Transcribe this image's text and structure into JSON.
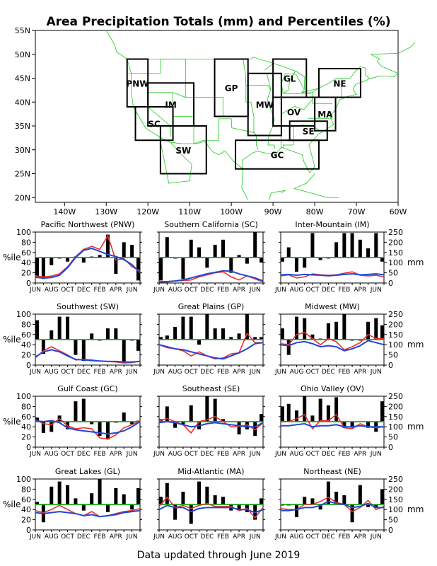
{
  "title": "Area Precipitation Totals (mm) and Percentiles (%)",
  "footer": "Data updated through June 2019",
  "colors": {
    "bar": "#000000",
    "ref": "#19a819",
    "red": "#e8312e",
    "blue": "#2345d8",
    "map_lines": "#1ec81e",
    "region_box": "#000000",
    "region_label": "#2d62e0"
  },
  "map": {
    "lat_labels": [
      "55N",
      "50N",
      "45N",
      "40N",
      "35N",
      "30N",
      "25N",
      "20N"
    ],
    "lon_labels": [
      "140W",
      "130W",
      "120W",
      "110W",
      "100W",
      "90W",
      "80W",
      "70W",
      "60W"
    ],
    "regions": [
      {
        "code": "PNW",
        "lon": [
          -125,
          -120
        ],
        "lat": [
          39,
          49
        ]
      },
      {
        "code": "SC",
        "lon": [
          -123,
          -114
        ],
        "lat": [
          32,
          39
        ]
      },
      {
        "code": "IM",
        "lon": [
          -120,
          -109
        ],
        "lat": [
          35,
          44
        ]
      },
      {
        "code": "SW",
        "lon": [
          -117,
          -106
        ],
        "lat": [
          25,
          35
        ]
      },
      {
        "code": "GP",
        "lon": [
          -104,
          -96
        ],
        "lat": [
          37,
          49
        ]
      },
      {
        "code": "MW",
        "lon": [
          -96,
          -88
        ],
        "lat": [
          33,
          46
        ]
      },
      {
        "code": "GL",
        "lon": [
          -90,
          -82
        ],
        "lat": [
          41,
          49
        ]
      },
      {
        "code": "NE",
        "lon": [
          -79,
          -69
        ],
        "lat": [
          41,
          47
        ]
      },
      {
        "code": "OV",
        "lon": [
          -90,
          -80
        ],
        "lat": [
          35,
          41
        ]
      },
      {
        "code": "MA",
        "lon": [
          -80,
          -75
        ],
        "lat": [
          34,
          41
        ]
      },
      {
        "code": "SE",
        "lon": [
          -86,
          -77
        ],
        "lat": [
          32,
          36
        ]
      },
      {
        "code": "GC",
        "lon": [
          -99,
          -79
        ],
        "lat": [
          26,
          32
        ]
      }
    ]
  },
  "chart_common": {
    "months": [
      "JUN",
      "AUG",
      "OCT",
      "DEC",
      "FEB",
      "APR",
      "JUN"
    ],
    "percentile_label": "%ile",
    "percentile_ticks": [
      "0",
      "20",
      "40",
      "60",
      "80",
      "100"
    ],
    "mm_label": "mm",
    "mm_ticks": [
      "0",
      "50",
      "100",
      "150",
      "200",
      "250"
    ]
  },
  "chart_data": [
    {
      "type": "bar",
      "title": "Pacific Northwest (PNW)",
      "ylabel": "%ile",
      "ylim": [
        0,
        100
      ],
      "y2lim": [
        0,
        250
      ],
      "y2label": "",
      "series": [
        {
          "name": "",
          "values": [
            12,
            8,
            35,
            48,
            42,
            52,
            40,
            52,
            55,
            95,
            18,
            80,
            75,
            5
          ]
        },
        {
          "name": "",
          "values": [
            35,
            30,
            34,
            45,
            80,
            130,
            165,
            180,
            165,
            232,
            112,
            120,
            80,
            60
          ]
        },
        {
          "name": "",
          "values": [
            28,
            24,
            27,
            38,
            75,
            125,
            160,
            170,
            155,
            140,
            130,
            115,
            90,
            50
          ]
        }
      ]
    },
    {
      "type": "bar",
      "title": "Southern California (SC)",
      "ylabel": "",
      "ylim": [
        0,
        100
      ],
      "y2lim": [
        0,
        250
      ],
      "y2label": "",
      "series": [
        {
          "name": "",
          "values": [
            5,
            90,
            48,
            8,
            85,
            70,
            30,
            75,
            85,
            20,
            55,
            38,
            100,
            40
          ]
        },
        {
          "name": "",
          "values": [
            5,
            5,
            10,
            12,
            15,
            30,
            40,
            50,
            55,
            30,
            15,
            35,
            20,
            5
          ]
        },
        {
          "name": "",
          "values": [
            6,
            7,
            10,
            15,
            25,
            35,
            45,
            52,
            60,
            58,
            45,
            35,
            25,
            10
          ]
        }
      ]
    },
    {
      "type": "bar",
      "title": "Inter-Mountain (IM)",
      "ylabel": "",
      "ylim": [
        0,
        100
      ],
      "y2lim": [
        0,
        250
      ],
      "y2label": "",
      "series": [
        {
          "name": "",
          "values": [
            42,
            70,
            22,
            30,
            98,
            45,
            48,
            80,
            98,
            98,
            85,
            68,
            98,
            42
          ]
        },
        {
          "name": "",
          "values": [
            35,
            40,
            25,
            30,
            45,
            40,
            38,
            40,
            48,
            55,
            38,
            35,
            38,
            30
          ]
        },
        {
          "name": "",
          "values": [
            40,
            42,
            38,
            42,
            40,
            38,
            35,
            38,
            42,
            45,
            40,
            42,
            45,
            40
          ]
        }
      ]
    },
    {
      "type": "bar",
      "title": "Southwest (SW)",
      "ylabel": "%ile",
      "ylim": [
        0,
        100
      ],
      "y2lim": [
        0,
        250
      ],
      "y2label": "",
      "series": [
        {
          "name": "",
          "values": [
            88,
            22,
            68,
            95,
            95,
            20,
            8,
            62,
            48,
            72,
            72,
            5,
            48,
            28
          ]
        },
        {
          "name": "",
          "values": [
            35,
            70,
            90,
            70,
            50,
            25,
            28,
            25,
            20,
            18,
            15,
            10,
            12,
            20
          ]
        },
        {
          "name": "",
          "values": [
            40,
            65,
            75,
            65,
            45,
            28,
            25,
            22,
            20,
            18,
            18,
            15,
            15,
            18
          ]
        }
      ]
    },
    {
      "type": "bar",
      "title": "Great Plains (GP)",
      "ylabel": "",
      "ylim": [
        0,
        100
      ],
      "y2lim": [
        0,
        250
      ],
      "y2label": "",
      "series": [
        {
          "name": "",
          "values": [
            55,
            58,
            75,
            95,
            95,
            40,
            100,
            72,
            72,
            55,
            62,
            100,
            55,
            55
          ]
        },
        {
          "name": "",
          "values": [
            100,
            85,
            80,
            70,
            45,
            65,
            45,
            30,
            35,
            55,
            60,
            155,
            110,
            110
          ]
        },
        {
          "name": "",
          "values": [
            100,
            90,
            80,
            75,
            65,
            55,
            45,
            35,
            30,
            45,
            60,
            80,
            105,
            110
          ]
        }
      ]
    },
    {
      "type": "bar",
      "title": "Midwest (MW)",
      "ylabel": "",
      "ylim": [
        0,
        100
      ],
      "y2lim": [
        0,
        250
      ],
      "y2label": "",
      "series": [
        {
          "name": "",
          "values": [
            72,
            20,
            95,
            92,
            60,
            52,
            82,
            85,
            100,
            48,
            48,
            85,
            92,
            78
          ]
        },
        {
          "name": "",
          "values": [
            105,
            100,
            150,
            160,
            130,
            100,
            130,
            115,
            75,
            90,
            110,
            150,
            130,
            130
          ]
        },
        {
          "name": "",
          "values": [
            100,
            95,
            110,
            115,
            105,
            90,
            95,
            90,
            70,
            80,
            95,
            120,
            110,
            100
          ]
        }
      ]
    },
    {
      "type": "bar",
      "title": "Gulf Coast (GC)",
      "ylabel": "%ile",
      "ylim": [
        0,
        100
      ],
      "y2lim": [
        0,
        250
      ],
      "y2label": "",
      "series": [
        {
          "name": "",
          "values": [
            58,
            28,
            30,
            62,
            35,
            90,
            95,
            45,
            22,
            15,
            48,
            68,
            45,
            52
          ]
        },
        {
          "name": "",
          "values": [
            135,
            115,
            110,
            140,
            105,
            90,
            95,
            90,
            45,
            40,
            60,
            95,
            110,
            130
          ]
        },
        {
          "name": "",
          "values": [
            130,
            125,
            130,
            120,
            95,
            85,
            80,
            75,
            70,
            65,
            70,
            80,
            100,
            125
          ]
        }
      ]
    },
    {
      "type": "bar",
      "title": "Southeast (SE)",
      "ylabel": "",
      "ylim": [
        0,
        100
      ],
      "y2lim": [
        0,
        250
      ],
      "y2label": "",
      "series": [
        {
          "name": "",
          "values": [
            55,
            80,
            38,
            45,
            82,
            35,
            100,
            95,
            55,
            50,
            25,
            35,
            22,
            65
          ]
        },
        {
          "name": "",
          "values": [
            130,
            140,
            125,
            110,
            70,
            125,
            135,
            150,
            125,
            100,
            100,
            110,
            85,
            120
          ]
        },
        {
          "name": "",
          "values": [
            120,
            125,
            120,
            110,
            100,
            105,
            115,
            120,
            115,
            110,
            105,
            100,
            100,
            120
          ]
        }
      ]
    },
    {
      "type": "bar",
      "title": "Ohio Valley (OV)",
      "ylabel": "",
      "ylim": [
        0,
        100
      ],
      "y2lim": [
        0,
        250
      ],
      "y2label": "",
      "series": [
        {
          "name": "",
          "values": [
            80,
            85,
            72,
            100,
            62,
            95,
            82,
            98,
            38,
            38,
            50,
            38,
            30,
            90
          ]
        },
        {
          "name": "",
          "values": [
            125,
            125,
            140,
            160,
            90,
            130,
            130,
            160,
            95,
            90,
            115,
            100,
            95,
            100
          ]
        },
        {
          "name": "",
          "values": [
            105,
            105,
            110,
            115,
            100,
            105,
            105,
            110,
            100,
            100,
            105,
            100,
            100,
            100
          ]
        }
      ]
    },
    {
      "type": "bar",
      "title": "Great Lakes (GL)",
      "ylabel": "%ile",
      "ylim": [
        0,
        100
      ],
      "y2lim": [
        0,
        250
      ],
      "y2label": "",
      "series": [
        {
          "name": "",
          "values": [
            55,
            15,
            85,
            95,
            88,
            62,
            38,
            72,
            100,
            35,
            82,
            70,
            40,
            82
          ]
        },
        {
          "name": "",
          "values": [
            95,
            85,
            100,
            120,
            100,
            80,
            70,
            90,
            65,
            70,
            80,
            90,
            95,
            105
          ]
        },
        {
          "name": "",
          "values": [
            85,
            80,
            85,
            90,
            85,
            80,
            70,
            75,
            65,
            70,
            75,
            85,
            90,
            95
          ]
        }
      ]
    },
    {
      "type": "bar",
      "title": "Mid-Atlantic (MA)",
      "ylabel": "",
      "ylim": [
        0,
        100
      ],
      "y2lim": [
        0,
        250
      ],
      "y2label": "",
      "series": [
        {
          "name": "",
          "values": [
            65,
            92,
            20,
            75,
            12,
            95,
            85,
            68,
            65,
            38,
            40,
            35,
            20,
            62
          ]
        },
        {
          "name": "",
          "values": [
            115,
            160,
            110,
            120,
            105,
            120,
            130,
            115,
            115,
            115,
            95,
            105,
            60,
            110
          ]
        },
        {
          "name": "",
          "values": [
            100,
            120,
            110,
            110,
            90,
            105,
            110,
            110,
            110,
            110,
            100,
            100,
            85,
            100
          ]
        }
      ]
    },
    {
      "type": "bar",
      "title": "Northeast (NE)",
      "ylabel": "",
      "ylim": [
        0,
        100
      ],
      "y2lim": [
        0,
        250
      ],
      "y2label": "",
      "series": [
        {
          "name": "",
          "values": [
            48,
            48,
            25,
            65,
            62,
            40,
            95,
            75,
            68,
            15,
            88,
            45,
            45,
            80
          ]
        },
        {
          "name": "",
          "values": [
            105,
            100,
            100,
            125,
            125,
            140,
            160,
            135,
            125,
            90,
            110,
            145,
            100,
            115
          ]
        },
        {
          "name": "",
          "values": [
            95,
            95,
            100,
            110,
            110,
            120,
            140,
            130,
            125,
            110,
            115,
            130,
            110,
            110
          ]
        }
      ]
    }
  ]
}
